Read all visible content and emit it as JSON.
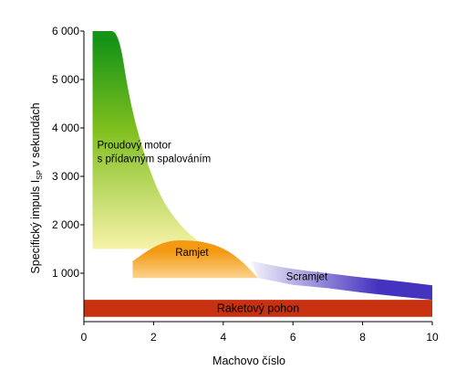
{
  "chart_data": {
    "type": "area",
    "xlabel": "Machovo číslo",
    "ylabel": "Specifický impuls I",
    "ylabel_subscript": "SP",
    "ylabel_suffix": " v sekundách",
    "xlim": [
      0,
      10
    ],
    "ylim": [
      0,
      6000
    ],
    "xticks": [
      0,
      2,
      4,
      6,
      8,
      10
    ],
    "yticks": [
      1000,
      2000,
      3000,
      4000,
      5000,
      6000
    ],
    "xtick_labels": [
      "0",
      "2",
      "4",
      "6",
      "8",
      "10"
    ],
    "ytick_labels": [
      "1 000",
      "2 000",
      "3 000",
      "4 000",
      "5 000",
      "6 000"
    ],
    "grid": false,
    "regions": [
      {
        "name": "Proudový motor s přídavným spalováním",
        "label_lines": [
          "Proudový  motor",
          "s přídavným spalováním"
        ],
        "color_top": "#179417",
        "color_bottom": "#f7f2a8",
        "upper": {
          "x": [
            0.25,
            0.3,
            0.6,
            1.0,
            1.3,
            1.7,
            2.2,
            2.8,
            3.3
          ],
          "y": [
            6000,
            6000,
            6000,
            6000,
            4600,
            3500,
            2550,
            1950,
            1650
          ]
        },
        "lower": {
          "x": [
            3.3,
            2.8,
            2.0,
            1.4,
            1.0,
            0.5,
            0.25
          ],
          "y": [
            1650,
            1600,
            1500,
            1500,
            1500,
            1500,
            1500
          ]
        }
      },
      {
        "name": "Ramjet",
        "color_top": "#f39a12",
        "color_bottom": "#fcd28e",
        "upper": {
          "x": [
            1.4,
            2.0,
            2.5,
            3.0,
            3.5,
            4.0,
            4.5,
            5.0
          ],
          "y": [
            1250,
            1550,
            1680,
            1680,
            1640,
            1520,
            1280,
            900
          ]
        },
        "lower": {
          "x": [
            5.0,
            4.0,
            3.0,
            2.0,
            1.4
          ],
          "y": [
            900,
            900,
            900,
            900,
            900
          ]
        }
      },
      {
        "name": "Scramjet",
        "color_top": "#4433bf",
        "color_bottom": "#f2f2fa",
        "upper": {
          "x": [
            4.8,
            6.0,
            7.0,
            8.0,
            9.0,
            10.0
          ],
          "y": [
            1250,
            1080,
            1000,
            910,
            840,
            750
          ]
        },
        "lower": {
          "x": [
            10.0,
            9.0,
            8.0,
            7.0,
            6.0,
            5.0
          ],
          "y": [
            450,
            520,
            600,
            690,
            760,
            900
          ]
        }
      },
      {
        "name": "Raketový pohon",
        "color": "#c8310f",
        "upper": {
          "x": [
            0,
            10
          ],
          "y": [
            450,
            450
          ]
        },
        "lower": {
          "x": [
            10,
            0
          ],
          "y": [
            100,
            100
          ]
        }
      }
    ]
  }
}
